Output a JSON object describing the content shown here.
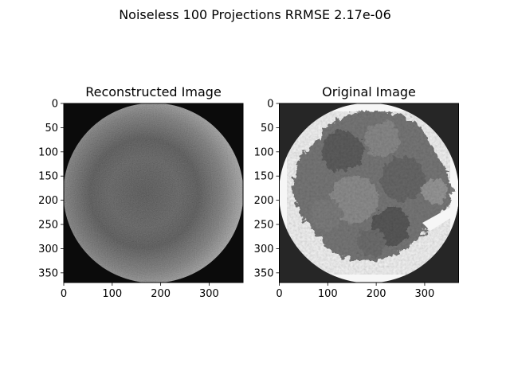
{
  "figure": {
    "suptitle": "Noiseless 100 Projections RRMSE 2.17e-06"
  },
  "chart_data": [
    {
      "type": "heatmap",
      "title": "Reconstructed Image",
      "colormap": "grayscale",
      "image_size": [
        370,
        370
      ],
      "xlim": [
        0,
        370
      ],
      "ylim": [
        370,
        0
      ],
      "xticks": [
        0,
        100,
        200,
        300
      ],
      "yticks": [
        0,
        50,
        100,
        150,
        200,
        250,
        300,
        350
      ],
      "content": "circular reconstruction of a porous sample, lighter at rim, darker grainy interior, black outside the circle"
    },
    {
      "type": "heatmap",
      "title": "Original Image",
      "colormap": "grayscale",
      "image_size": [
        370,
        370
      ],
      "xlim": [
        0,
        370
      ],
      "ylim": [
        370,
        0
      ],
      "xticks": [
        0,
        100,
        200,
        300
      ],
      "yticks": [
        0,
        50,
        100,
        150,
        200,
        250,
        300,
        350
      ],
      "content": "white disk containing a grey textured aggregate cluster, dark grey outside the circle"
    }
  ]
}
